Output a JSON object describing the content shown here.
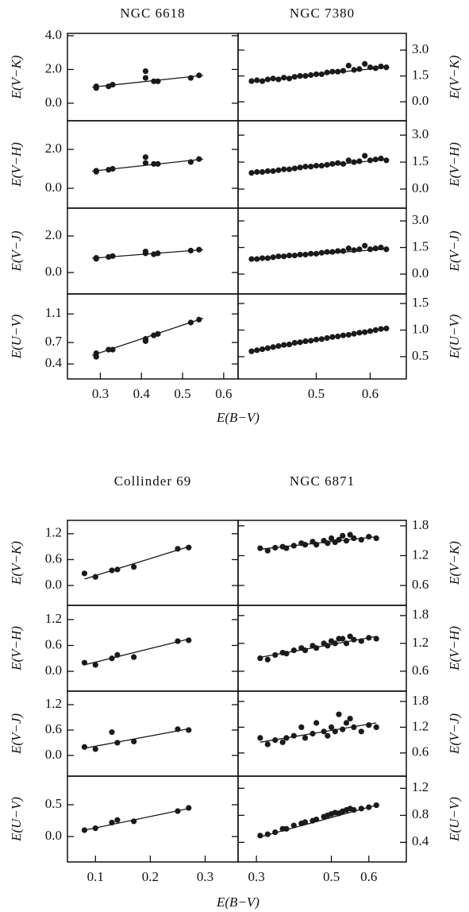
{
  "chart_data": [
    {
      "type": "scatter",
      "title": "NGC 6618",
      "ylabel": "E(V−K)",
      "color": "#1a1a1a",
      "xlim": [
        0.22,
        0.635
      ],
      "ylim": [
        -1.04,
        4.14
      ],
      "yticks": [
        {
          "value": 0,
          "label": "0.0"
        },
        {
          "value": 2,
          "label": "2.0"
        },
        {
          "value": 4,
          "label": "4.0"
        }
      ],
      "x": [
        0.29,
        0.29,
        0.32,
        0.33,
        0.41,
        0.41,
        0.43,
        0.44,
        0.52,
        0.54
      ],
      "values": [
        0.9,
        1.0,
        1.0,
        1.1,
        1.5,
        1.9,
        1.3,
        1.3,
        1.5,
        1.65
      ],
      "fit": {
        "x": [
          0.28,
          0.55
        ],
        "values": [
          0.95,
          1.65
        ]
      }
    },
    {
      "type": "scatter",
      "title": "NGC 7380",
      "ylabel": "E(V−K)",
      "color": "#1a1a1a",
      "xlim": [
        0.355,
        0.667
      ],
      "ylim": [
        -1.1,
        3.97
      ],
      "yticks": [
        {
          "value": 0,
          "label": "0.0"
        },
        1.5,
        {
          "value": 3,
          "label": "3.0"
        }
      ],
      "x": [
        0.38,
        0.39,
        0.4,
        0.41,
        0.42,
        0.43,
        0.44,
        0.45,
        0.46,
        0.47,
        0.48,
        0.49,
        0.5,
        0.51,
        0.52,
        0.53,
        0.54,
        0.55,
        0.56,
        0.57,
        0.58,
        0.59,
        0.6,
        0.61,
        0.62,
        0.63
      ],
      "values": [
        1.2,
        1.25,
        1.2,
        1.3,
        1.35,
        1.3,
        1.4,
        1.35,
        1.45,
        1.5,
        1.5,
        1.55,
        1.6,
        1.6,
        1.7,
        1.75,
        1.75,
        1.8,
        2.1,
        1.85,
        1.9,
        2.2,
        2.0,
        1.95,
        2.05,
        2.0
      ],
      "fit": {
        "x": [
          0.38,
          0.63
        ],
        "values": [
          1.2,
          2.0
        ]
      }
    },
    {
      "type": "scatter",
      "ylabel": "E(V−H)",
      "color": "#1a1a1a",
      "xlim": [
        0.22,
        0.635
      ],
      "ylim": [
        -1.02,
        3.47
      ],
      "yticks": [
        {
          "value": 0,
          "label": "0.0"
        },
        {
          "value": 2,
          "label": "2.0"
        }
      ],
      "x": [
        0.29,
        0.29,
        0.32,
        0.33,
        0.41,
        0.41,
        0.43,
        0.44,
        0.52,
        0.54
      ],
      "values": [
        0.85,
        0.9,
        0.95,
        1.0,
        1.3,
        1.6,
        1.25,
        1.25,
        1.35,
        1.5
      ],
      "fit": {
        "x": [
          0.28,
          0.55
        ],
        "values": [
          0.88,
          1.5
        ]
      }
    },
    {
      "type": "scatter",
      "ylabel": "E(V−H)",
      "color": "#1a1a1a",
      "xlim": [
        0.355,
        0.667
      ],
      "ylim": [
        -1.06,
        3.8
      ],
      "yticks": [
        {
          "value": 0,
          "label": "0.0"
        },
        1.5,
        {
          "value": 3,
          "label": "3.0"
        }
      ],
      "x": [
        0.38,
        0.39,
        0.4,
        0.41,
        0.42,
        0.43,
        0.44,
        0.45,
        0.46,
        0.47,
        0.48,
        0.49,
        0.5,
        0.51,
        0.52,
        0.53,
        0.54,
        0.55,
        0.56,
        0.57,
        0.58,
        0.59,
        0.6,
        0.61,
        0.62,
        0.63
      ],
      "values": [
        0.9,
        0.95,
        0.95,
        1.0,
        1.0,
        1.05,
        1.1,
        1.1,
        1.15,
        1.2,
        1.25,
        1.25,
        1.3,
        1.3,
        1.35,
        1.4,
        1.45,
        1.4,
        1.6,
        1.5,
        1.55,
        1.85,
        1.6,
        1.65,
        1.7,
        1.6
      ],
      "fit": {
        "x": [
          0.38,
          0.63
        ],
        "values": [
          0.9,
          1.65
        ]
      }
    },
    {
      "type": "scatter",
      "ylabel": "E(V−J)",
      "color": "#1a1a1a",
      "xlim": [
        0.22,
        0.635
      ],
      "ylim": [
        -1.17,
        3.52
      ],
      "yticks": [
        {
          "value": 0,
          "label": "0.0"
        },
        {
          "value": 2,
          "label": "2.0"
        }
      ],
      "x": [
        0.29,
        0.29,
        0.32,
        0.33,
        0.41,
        0.41,
        0.43,
        0.44,
        0.52,
        0.54
      ],
      "values": [
        0.8,
        0.75,
        0.85,
        0.9,
        1.05,
        1.15,
        1.0,
        1.05,
        1.2,
        1.25
      ],
      "fit": {
        "x": [
          0.28,
          0.55
        ],
        "values": [
          0.78,
          1.25
        ]
      }
    },
    {
      "type": "scatter",
      "ylabel": "E(V−J)",
      "color": "#1a1a1a",
      "xlim": [
        0.355,
        0.667
      ],
      "ylim": [
        -1.12,
        3.72
      ],
      "yticks": [
        {
          "value": 0,
          "label": "0.0"
        },
        1.5,
        {
          "value": 3,
          "label": "3.0"
        }
      ],
      "x": [
        0.38,
        0.39,
        0.4,
        0.41,
        0.42,
        0.43,
        0.44,
        0.45,
        0.46,
        0.47,
        0.48,
        0.49,
        0.5,
        0.51,
        0.52,
        0.53,
        0.54,
        0.55,
        0.56,
        0.57,
        0.58,
        0.59,
        0.6,
        0.61,
        0.62,
        0.63
      ],
      "values": [
        0.85,
        0.85,
        0.9,
        0.9,
        0.95,
        1.0,
        1.0,
        1.05,
        1.05,
        1.1,
        1.1,
        1.15,
        1.15,
        1.2,
        1.25,
        1.25,
        1.3,
        1.3,
        1.45,
        1.35,
        1.4,
        1.6,
        1.4,
        1.45,
        1.5,
        1.4
      ],
      "fit": {
        "x": [
          0.38,
          0.63
        ],
        "values": [
          0.85,
          1.42
        ]
      }
    },
    {
      "type": "scatter",
      "ylabel": "E(U−V)",
      "xlabel": "E(B−V)",
      "color": "#1a1a1a",
      "xlim": [
        0.22,
        0.635
      ],
      "xticks": [
        0.3,
        0.4,
        0.5,
        0.6
      ],
      "ylim": [
        0.19,
        1.38
      ],
      "yticks": [
        0.4,
        0.7,
        1.1
      ],
      "x": [
        0.29,
        0.29,
        0.32,
        0.33,
        0.41,
        0.41,
        0.43,
        0.44,
        0.52,
        0.54
      ],
      "values": [
        0.55,
        0.5,
        0.6,
        0.6,
        0.75,
        0.72,
        0.8,
        0.82,
        0.98,
        1.02
      ],
      "fit": {
        "x": [
          0.28,
          0.55
        ],
        "values": [
          0.52,
          1.04
        ]
      }
    },
    {
      "type": "scatter",
      "ylabel": "E(U−V)",
      "color": "#1a1a1a",
      "xlim": [
        0.355,
        0.667
      ],
      "xticks": [
        0.5,
        0.6
      ],
      "ylim": [
        0.08,
        1.68
      ],
      "yticks": [
        0.5,
        {
          "value": 1,
          "label": "1.0"
        },
        1.5
      ],
      "x": [
        0.38,
        0.39,
        0.4,
        0.41,
        0.42,
        0.43,
        0.44,
        0.45,
        0.46,
        0.47,
        0.48,
        0.49,
        0.5,
        0.51,
        0.52,
        0.53,
        0.54,
        0.55,
        0.56,
        0.57,
        0.58,
        0.59,
        0.6,
        0.61,
        0.62,
        0.63
      ],
      "values": [
        0.6,
        0.62,
        0.64,
        0.66,
        0.68,
        0.7,
        0.72,
        0.73,
        0.76,
        0.77,
        0.79,
        0.8,
        0.82,
        0.83,
        0.85,
        0.87,
        0.88,
        0.9,
        0.91,
        0.93,
        0.95,
        0.96,
        0.98,
        1.0,
        1.02,
        1.03
      ],
      "fit": {
        "x": [
          0.38,
          0.63
        ],
        "values": [
          0.6,
          1.04
        ]
      }
    },
    {
      "type": "scatter",
      "title": "Collinder 69",
      "ylabel": "E(V−K)",
      "color": "#1a1a1a",
      "xlim": [
        0.049,
        0.36
      ],
      "ylim": [
        -0.46,
        1.51
      ],
      "yticks": [
        {
          "value": 0,
          "label": "0.0"
        },
        0.6,
        1.2
      ],
      "x": [
        0.08,
        0.1,
        0.13,
        0.14,
        0.17,
        0.25,
        0.27
      ],
      "values": [
        0.28,
        0.2,
        0.35,
        0.37,
        0.43,
        0.85,
        0.88
      ],
      "fit": {
        "x": [
          0.08,
          0.27
        ],
        "values": [
          0.15,
          0.9
        ]
      }
    },
    {
      "type": "scatter",
      "title": "NGC 6871",
      "ylabel": "E(V−K)",
      "color": "#1a1a1a",
      "xlim": [
        0.251,
        0.7
      ],
      "ylim": [
        0.2,
        1.91
      ],
      "yticks": [
        0.6,
        1.2,
        1.8
      ],
      "x": [
        0.31,
        0.33,
        0.35,
        0.37,
        0.38,
        0.4,
        0.42,
        0.43,
        0.45,
        0.46,
        0.48,
        0.49,
        0.5,
        0.51,
        0.52,
        0.53,
        0.54,
        0.55,
        0.56,
        0.58,
        0.6,
        0.62
      ],
      "values": [
        1.35,
        1.3,
        1.36,
        1.38,
        1.35,
        1.4,
        1.45,
        1.42,
        1.48,
        1.42,
        1.5,
        1.45,
        1.55,
        1.47,
        1.52,
        1.6,
        1.5,
        1.62,
        1.55,
        1.52,
        1.58,
        1.55
      ],
      "fit": {
        "x": [
          0.31,
          0.62
        ],
        "values": [
          1.33,
          1.58
        ]
      }
    },
    {
      "type": "scatter",
      "ylabel": "E(V−H)",
      "color": "#1a1a1a",
      "xlim": [
        0.049,
        0.36
      ],
      "ylim": [
        -0.46,
        1.53
      ],
      "yticks": [
        {
          "value": 0,
          "label": "0.0"
        },
        0.6,
        1.2
      ],
      "x": [
        0.08,
        0.1,
        0.13,
        0.14,
        0.17,
        0.25,
        0.27
      ],
      "values": [
        0.2,
        0.15,
        0.3,
        0.38,
        0.33,
        0.7,
        0.72
      ],
      "fit": {
        "x": [
          0.08,
          0.27
        ],
        "values": [
          0.15,
          0.75
        ]
      }
    },
    {
      "type": "scatter",
      "ylabel": "E(V−H)",
      "color": "#1a1a1a",
      "xlim": [
        0.251,
        0.7
      ],
      "ylim": [
        0.17,
        2.02
      ],
      "yticks": [
        0.6,
        1.2,
        1.8
      ],
      "x": [
        0.31,
        0.33,
        0.35,
        0.37,
        0.38,
        0.4,
        0.42,
        0.43,
        0.45,
        0.46,
        0.48,
        0.49,
        0.5,
        0.51,
        0.52,
        0.53,
        0.54,
        0.55,
        0.56,
        0.58,
        0.6,
        0.62
      ],
      "values": [
        0.88,
        0.85,
        0.95,
        1.0,
        0.98,
        1.05,
        1.1,
        1.05,
        1.15,
        1.1,
        1.2,
        1.15,
        1.25,
        1.2,
        1.3,
        1.3,
        1.2,
        1.35,
        1.28,
        1.25,
        1.32,
        1.3
      ],
      "fit": {
        "x": [
          0.31,
          0.62
        ],
        "values": [
          0.9,
          1.35
        ]
      }
    },
    {
      "type": "scatter",
      "ylabel": "E(V−J)",
      "color": "#1a1a1a",
      "xlim": [
        0.049,
        0.36
      ],
      "ylim": [
        -0.49,
        1.52
      ],
      "yticks": [
        {
          "value": 0,
          "label": "0.0"
        },
        0.6,
        1.2
      ],
      "x": [
        0.08,
        0.1,
        0.13,
        0.14,
        0.17,
        0.25,
        0.27
      ],
      "values": [
        0.2,
        0.15,
        0.55,
        0.3,
        0.33,
        0.62,
        0.6
      ],
      "fit": {
        "x": [
          0.08,
          0.27
        ],
        "values": [
          0.17,
          0.63
        ]
      }
    },
    {
      "type": "scatter",
      "ylabel": "E(V−J)",
      "color": "#1a1a1a",
      "xlim": [
        0.251,
        0.7
      ],
      "ylim": [
        0.06,
        2.04
      ],
      "yticks": [
        0.6,
        1.2,
        1.8
      ],
      "x": [
        0.31,
        0.33,
        0.35,
        0.37,
        0.38,
        0.4,
        0.42,
        0.43,
        0.45,
        0.46,
        0.48,
        0.49,
        0.5,
        0.51,
        0.52,
        0.53,
        0.54,
        0.55,
        0.56,
        0.58,
        0.6,
        0.62
      ],
      "values": [
        0.95,
        0.8,
        0.9,
        0.85,
        0.95,
        1.0,
        1.2,
        0.95,
        1.05,
        1.3,
        1.1,
        1.0,
        1.2,
        1.1,
        1.5,
        1.15,
        1.3,
        1.4,
        1.2,
        1.1,
        1.25,
        1.2
      ],
      "fit": {
        "x": [
          0.31,
          0.62
        ],
        "values": [
          0.85,
          1.3
        ]
      }
    },
    {
      "type": "scatter",
      "ylabel": "E(U−V)",
      "xlabel": "E(B−V)",
      "color": "#1a1a1a",
      "xlim": [
        0.049,
        0.36
      ],
      "xticks": [
        0.1,
        0.2,
        0.3
      ],
      "ylim": [
        -0.4,
        0.95
      ],
      "yticks": [
        {
          "value": 0,
          "label": "0.0"
        },
        0.5
      ],
      "x": [
        0.08,
        0.1,
        0.13,
        0.14,
        0.17,
        0.25,
        0.27
      ],
      "values": [
        0.1,
        0.13,
        0.22,
        0.26,
        0.24,
        0.4,
        0.45
      ],
      "fit": {
        "x": [
          0.08,
          0.27
        ],
        "values": [
          0.1,
          0.44
        ]
      }
    },
    {
      "type": "scatter",
      "ylabel": "E(U−V)",
      "color": "#1a1a1a",
      "xlim": [
        0.251,
        0.7
      ],
      "xticks": [
        0.3,
        0.5,
        0.6
      ],
      "ylim": [
        0.11,
        1.38
      ],
      "yticks": [
        0.4,
        0.8,
        1.2
      ],
      "x": [
        0.31,
        0.33,
        0.35,
        0.37,
        0.38,
        0.4,
        0.42,
        0.43,
        0.45,
        0.46,
        0.48,
        0.49,
        0.5,
        0.51,
        0.52,
        0.53,
        0.54,
        0.55,
        0.56,
        0.58,
        0.6,
        0.62
      ],
      "values": [
        0.5,
        0.52,
        0.55,
        0.6,
        0.6,
        0.65,
        0.68,
        0.7,
        0.72,
        0.74,
        0.78,
        0.8,
        0.82,
        0.84,
        0.83,
        0.86,
        0.88,
        0.9,
        0.88,
        0.9,
        0.92,
        0.95
      ],
      "fit": {
        "x": [
          0.31,
          0.62
        ],
        "values": [
          0.48,
          0.95
        ]
      }
    }
  ]
}
